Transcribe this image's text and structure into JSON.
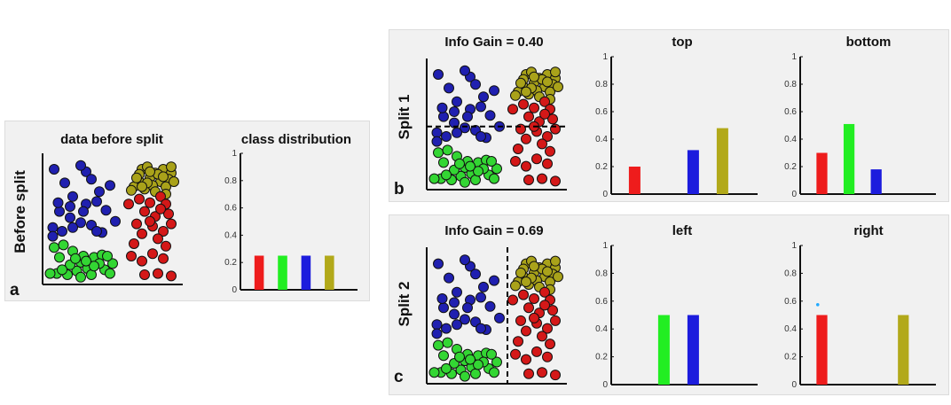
{
  "colors": {
    "red": "#ee1c1c",
    "green": "#22ee22",
    "blue": "#1c1cdd",
    "olive": "#b2a91a",
    "scatter_blue": "#2020b0",
    "scatter_green": "#33d633",
    "scatter_olive": "#a9a21a",
    "scatter_red": "#d41818",
    "point_outline": "#111111",
    "bar_axis": "#111111",
    "dot": "#22aaff"
  },
  "panels": {
    "a": {
      "letter": "a",
      "side_label": "Before split",
      "scatter_title": "data before split",
      "bar_title": "class distribution"
    },
    "b": {
      "letter": "b",
      "side_label": "Split 1",
      "scatter_title": "Info Gain = 0.40",
      "bar_title_1": "top",
      "bar_title_2": "bottom"
    },
    "c": {
      "letter": "c",
      "side_label": "Split 2",
      "scatter_title": "Info Gain = 0.69",
      "bar_title_1": "left",
      "bar_title_2": "right"
    }
  },
  "chart_data": [
    {
      "id": "class-distribution",
      "type": "bar",
      "title": "class distribution",
      "categories": [
        "red",
        "green",
        "blue",
        "olive"
      ],
      "values": [
        0.25,
        0.25,
        0.25,
        0.25
      ],
      "ylim": [
        0,
        1
      ],
      "yticks": [
        "0",
        "0.2",
        "0.4",
        "0.6",
        "0.8",
        "1"
      ],
      "grid": false
    },
    {
      "id": "split1-top",
      "type": "bar",
      "title": "top",
      "categories": [
        "red",
        "green",
        "blue",
        "olive"
      ],
      "values": [
        0.2,
        0,
        0.32,
        0.48
      ],
      "ylim": [
        0,
        1
      ],
      "yticks": [
        "0",
        "0.2",
        "0.4",
        "0.6",
        "0.8",
        "1"
      ],
      "grid": false
    },
    {
      "id": "split1-bottom",
      "type": "bar",
      "title": "bottom",
      "categories": [
        "red",
        "green",
        "blue",
        "olive"
      ],
      "values": [
        0.3,
        0.51,
        0.18,
        0
      ],
      "ylim": [
        0,
        1
      ],
      "yticks": [
        "0",
        "0.2",
        "0.4",
        "0.6",
        "0.8",
        "1"
      ],
      "grid": false
    },
    {
      "id": "split2-left",
      "type": "bar",
      "title": "left",
      "categories": [
        "red",
        "green",
        "blue",
        "olive"
      ],
      "values": [
        0,
        0.5,
        0.5,
        0
      ],
      "ylim": [
        0,
        1
      ],
      "yticks": [
        "0",
        "0.2",
        "0.4",
        "0.6",
        "0.8",
        "1"
      ],
      "grid": false
    },
    {
      "id": "split2-right",
      "type": "bar",
      "title": "right",
      "categories": [
        "red",
        "green",
        "blue",
        "olive"
      ],
      "values": [
        0.5,
        0,
        0,
        0.5
      ],
      "ylim": [
        0,
        1
      ],
      "yticks": [
        "0",
        "0.2",
        "0.4",
        "0.6",
        "0.8",
        "1"
      ],
      "grid": false
    },
    {
      "id": "data-before-split",
      "type": "scatter",
      "title": "data before split",
      "xlim": [
        0,
        1
      ],
      "ylim": [
        0,
        1
      ],
      "series": [
        {
          "class": "blue",
          "points": [
            [
              0.06,
              0.9
            ],
            [
              0.3,
              0.88
            ],
            [
              0.26,
              0.93
            ],
            [
              0.34,
              0.82
            ],
            [
              0.14,
              0.79
            ],
            [
              0.48,
              0.77
            ],
            [
              0.2,
              0.68
            ],
            [
              0.3,
              0.62
            ],
            [
              0.38,
              0.64
            ],
            [
              0.1,
              0.56
            ],
            [
              0.18,
              0.51
            ],
            [
              0.45,
              0.57
            ],
            [
              0.26,
              0.47
            ],
            [
              0.34,
              0.45
            ],
            [
              0.42,
              0.39
            ],
            [
              0.05,
              0.43
            ],
            [
              0.12,
              0.4
            ],
            [
              0.2,
              0.43
            ],
            [
              0.05,
              0.36
            ],
            [
              0.38,
              0.4
            ],
            [
              0.28,
              0.56
            ],
            [
              0.52,
              0.48
            ],
            [
              0.18,
              0.6
            ],
            [
              0.4,
              0.72
            ],
            [
              0.09,
              0.63
            ]
          ]
        },
        {
          "class": "green",
          "points": [
            [
              0.06,
              0.27
            ],
            [
              0.13,
              0.29
            ],
            [
              0.2,
              0.24
            ],
            [
              0.1,
              0.19
            ],
            [
              0.26,
              0.15
            ],
            [
              0.36,
              0.19
            ],
            [
              0.42,
              0.21
            ],
            [
              0.5,
              0.14
            ],
            [
              0.31,
              0.1
            ],
            [
              0.23,
              0.08
            ],
            [
              0.16,
              0.05
            ],
            [
              0.08,
              0.06
            ],
            [
              0.34,
              0.05
            ],
            [
              0.44,
              0.09
            ],
            [
              0.28,
              0.2
            ],
            [
              0.18,
              0.13
            ],
            [
              0.4,
              0.14
            ],
            [
              0.48,
              0.06
            ],
            [
              0.26,
              0.03
            ],
            [
              0.12,
              0.09
            ],
            [
              0.36,
              0.12
            ],
            [
              0.22,
              0.18
            ],
            [
              0.03,
              0.06
            ],
            [
              0.3,
              0.16
            ],
            [
              0.46,
              0.2
            ]
          ]
        },
        {
          "class": "olive",
          "points": [
            [
              0.72,
              0.9
            ],
            [
              0.76,
              0.92
            ],
            [
              0.82,
              0.87
            ],
            [
              0.88,
              0.9
            ],
            [
              0.94,
              0.87
            ],
            [
              0.78,
              0.83
            ],
            [
              0.86,
              0.8
            ],
            [
              0.92,
              0.82
            ],
            [
              0.7,
              0.8
            ],
            [
              0.66,
              0.76
            ],
            [
              0.74,
              0.74
            ],
            [
              0.8,
              0.77
            ],
            [
              0.9,
              0.76
            ],
            [
              0.96,
              0.8
            ],
            [
              0.84,
              0.86
            ],
            [
              0.7,
              0.86
            ],
            [
              0.76,
              0.79
            ],
            [
              0.88,
              0.84
            ],
            [
              0.64,
              0.73
            ],
            [
              0.82,
              0.72
            ],
            [
              0.94,
              0.92
            ],
            [
              0.72,
              0.76
            ],
            [
              0.9,
              0.7
            ],
            [
              0.78,
              0.88
            ],
            [
              0.68,
              0.83
            ]
          ]
        },
        {
          "class": "red",
          "points": [
            [
              0.7,
              0.66
            ],
            [
              0.78,
              0.63
            ],
            [
              0.86,
              0.68
            ],
            [
              0.9,
              0.62
            ],
            [
              0.74,
              0.56
            ],
            [
              0.82,
              0.52
            ],
            [
              0.92,
              0.54
            ],
            [
              0.68,
              0.46
            ],
            [
              0.8,
              0.44
            ],
            [
              0.88,
              0.4
            ],
            [
              0.94,
              0.46
            ],
            [
              0.72,
              0.38
            ],
            [
              0.84,
              0.34
            ],
            [
              0.64,
              0.2
            ],
            [
              0.72,
              0.16
            ],
            [
              0.8,
              0.22
            ],
            [
              0.88,
              0.18
            ],
            [
              0.94,
              0.04
            ],
            [
              0.84,
              0.06
            ],
            [
              0.74,
              0.05
            ],
            [
              0.66,
              0.3
            ],
            [
              0.9,
              0.28
            ],
            [
              0.78,
              0.48
            ],
            [
              0.86,
              0.58
            ],
            [
              0.62,
              0.62
            ]
          ]
        }
      ]
    }
  ],
  "split_lines": {
    "split1": {
      "orientation": "horizontal",
      "y": 0.48
    },
    "split2": {
      "orientation": "vertical",
      "x": 0.58
    }
  },
  "marker": {
    "x": 0.58,
    "y": 0.6
  }
}
